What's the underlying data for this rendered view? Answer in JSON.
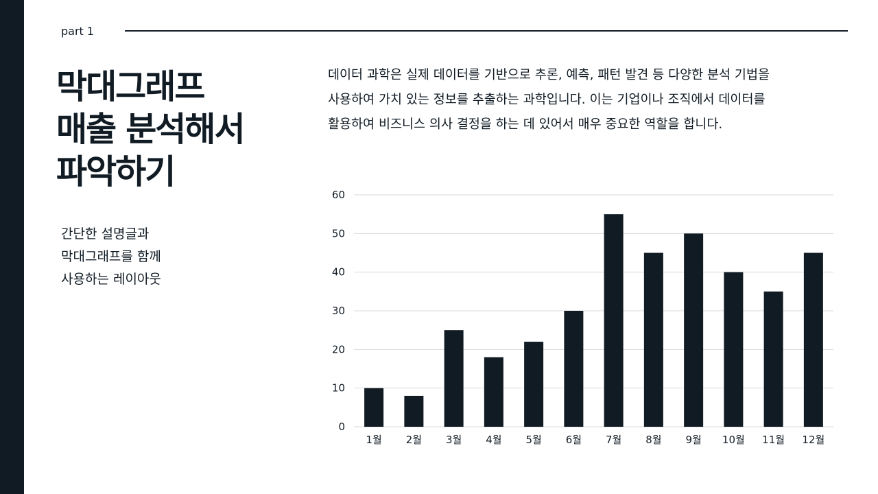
{
  "header": {
    "part_label": "part 1"
  },
  "title": {
    "lines": [
      "막대그래프",
      "매출 분석해서",
      "파악하기"
    ]
  },
  "subtitle": {
    "lines": [
      "간단한 설명글과",
      "막대그래프를 함께",
      "사용하는 레이아웃"
    ]
  },
  "description": {
    "lines": [
      "데이터 과학은 실제 데이터를 기반으로 추론, 예측, 패턴 발견 등 다양한 분석 기법을",
      "사용하여 가치 있는 정보를 추출하는 과학입니다. 이는 기업이나 조직에서 데이터를",
      "활용하여 비즈니스 의사 결정을 하는 데 있어서 매우 중요한 역할을 합니다."
    ]
  },
  "colors": {
    "primary": "#111b24",
    "gridline": "#d9d9d9",
    "background": "#ffffff"
  },
  "chart_data": {
    "type": "bar",
    "categories": [
      "1월",
      "2월",
      "3월",
      "4월",
      "5월",
      "6월",
      "7월",
      "8월",
      "9월",
      "10월",
      "11월",
      "12월"
    ],
    "values": [
      10,
      8,
      25,
      18,
      22,
      30,
      55,
      45,
      50,
      40,
      35,
      45
    ],
    "y_ticks": [
      0,
      10,
      20,
      30,
      40,
      50,
      60
    ],
    "ylim": [
      0,
      60
    ],
    "grid": true,
    "legend": "none",
    "title": "",
    "xlabel": "",
    "ylabel": ""
  }
}
